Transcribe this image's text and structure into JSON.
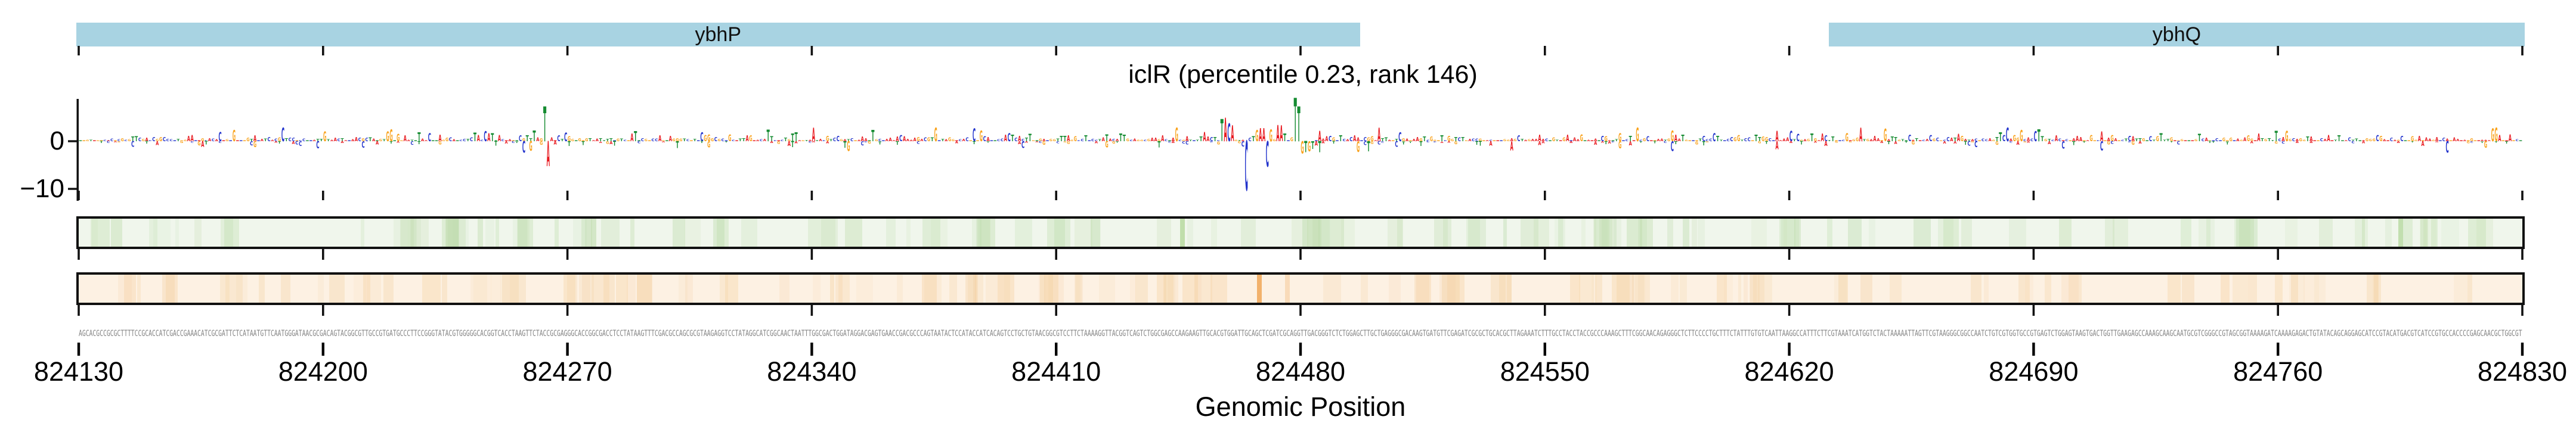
{
  "chart_data": {
    "type": "genome-tracks",
    "title": "iclR (percentile 0.23, rank 146)",
    "xlabel": "Genomic Position",
    "x_axis": {
      "start": 824130,
      "end": 824830,
      "tick_interval": 70,
      "tick_labels": [
        "824130",
        "824200",
        "824270",
        "824340",
        "824410",
        "824480",
        "824550",
        "824620",
        "824690",
        "824760",
        "824830"
      ]
    },
    "logo_axis": {
      "y_tick_labels": [
        "0",
        "−10"
      ],
      "y_tick_values": [
        0,
        -10
      ],
      "y_range": [
        -12,
        9
      ],
      "letter_colors": {
        "A": "#e8191f",
        "C": "#2233cc",
        "G": "#f9a21b",
        "T": "#168c32"
      }
    },
    "genes": [
      {
        "label": "ybhP",
        "start": 824130,
        "end": 824497,
        "color": "#a8d3e2"
      },
      {
        "label": "ybhQ",
        "start": 824632,
        "end": 824831,
        "color": "#a8d3e2"
      }
    ],
    "tracks": [
      {
        "name": "attribution-logo",
        "description": "per-base attribution letters, A red / C blue / G orange / T green"
      },
      {
        "name": "heatmap-green",
        "background": "#f0f6ec"
      },
      {
        "name": "heatmap-orange",
        "background": "#fdf1e3"
      },
      {
        "name": "dna-sequence",
        "color": "#828282"
      }
    ],
    "motif_features": [
      {
        "pos": 824263,
        "base": "T",
        "value": 7.2
      },
      {
        "pos": 824264,
        "base": "A",
        "value": -5.2
      },
      {
        "pos": 824457,
        "base": "T",
        "value": 4.6
      },
      {
        "pos": 824458,
        "base": "A",
        "value": 4.9
      },
      {
        "pos": 824459,
        "base": "C",
        "value": 3.7
      },
      {
        "pos": 824460,
        "base": "A",
        "value": 3.3
      },
      {
        "pos": 824464,
        "base": "C",
        "value": -10.3
      },
      {
        "pos": 824465,
        "base": "C",
        "value": 0.7
      },
      {
        "pos": 824466,
        "base": "T",
        "value": 1.0
      },
      {
        "pos": 824467,
        "base": "G",
        "value": 2.3
      },
      {
        "pos": 824468,
        "base": "A",
        "value": 2.7
      },
      {
        "pos": 824469,
        "base": "A",
        "value": 2.7
      },
      {
        "pos": 824470,
        "base": "C",
        "value": -5.3
      },
      {
        "pos": 824471,
        "base": "G",
        "value": 2.5
      },
      {
        "pos": 824473,
        "base": "A",
        "value": 3.4
      },
      {
        "pos": 824474,
        "base": "A",
        "value": 3.3
      },
      {
        "pos": 824475,
        "base": "T",
        "value": 1.6
      },
      {
        "pos": 824478,
        "base": "T",
        "value": 9.0
      },
      {
        "pos": 824479,
        "base": "T",
        "value": 7.2
      },
      {
        "pos": 824480,
        "base": "G",
        "value": -2.6
      },
      {
        "pos": 824481,
        "base": "T",
        "value": -2.3
      },
      {
        "pos": 824482,
        "base": "G",
        "value": -2.1
      },
      {
        "pos": 824483,
        "base": "T",
        "value": -1.6
      }
    ],
    "heatmap_highlights": {
      "green": [
        {
          "pos": 824446,
          "alpha": 0.5
        },
        {
          "pos": 824795,
          "alpha": 0.35
        }
      ],
      "orange": [
        {
          "pos": 824468,
          "alpha": 0.8
        },
        {
          "pos": 824476,
          "alpha": 0.28
        }
      ]
    },
    "sequence_start": "AGCACGCCGCGCTTTTCCGCACCATCGACCGAAACATCGCGATTCTCATAATGTTCAATGGGATAACGCGACAGTACGGCGTTGCCGTGATGCCCTTCCGGGTATACG",
    "sequence_end": "GCCACCCCGAGCAACGCTGGCGT"
  }
}
